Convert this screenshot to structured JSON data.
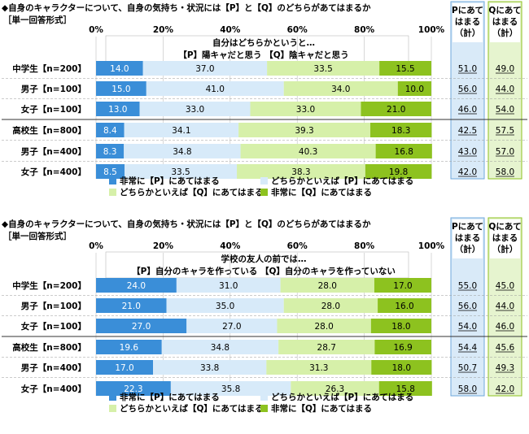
{
  "colors": {
    "p_strong": "#3a8ed8",
    "p_weak": "#d7eaf9",
    "q_weak": "#d6f0a9",
    "q_strong": "#8dc21f",
    "p_col_bg": "#d9eaf8",
    "q_col_bg": "#e6f4cf",
    "p_col_border": "#6fa8dc",
    "q_col_border": "#8dc21f"
  },
  "ticks": [
    "0%",
    "20%",
    "40%",
    "60%",
    "80%",
    "100%"
  ],
  "legend": [
    "非常に【P】にあてはまる",
    "どちらかといえば【P】にあてはまる",
    "どちらかといえば【Q】にあてはまる",
    "非常に【Q】にあてはまる"
  ],
  "p_header": "Pにあてはまる（計）",
  "q_header": "Qにあてはまる（計）",
  "chart_data": [
    {
      "type": "bar",
      "stacked": true,
      "orientation": "horizontal",
      "title": "◆自身のキャラクターについて、自身の気持ち・状況には【P】と【Q】のどちらがあてはまるか",
      "subtitle": "［単一回答形式］",
      "question": "自分はどちらかというと…",
      "pq": "【P】陽キャだと思う 【Q】陰キャだと思う",
      "xlim": [
        0,
        100
      ],
      "categories": [
        "中学生【n=200】",
        "男子【n=100】",
        "女子【n=100】",
        "高校生【n=800】",
        "男子【n=400】",
        "女子【n=400】"
      ],
      "series": [
        {
          "name": "非常に【P】にあてはまる",
          "values": [
            14.0,
            15.0,
            13.0,
            8.4,
            8.3,
            8.5
          ]
        },
        {
          "name": "どちらかといえば【P】にあてはまる",
          "values": [
            37.0,
            41.0,
            33.0,
            34.1,
            34.8,
            33.5
          ]
        },
        {
          "name": "どちらかといえば【Q】にあてはまる",
          "values": [
            33.5,
            34.0,
            33.0,
            39.3,
            40.3,
            38.3
          ]
        },
        {
          "name": "非常に【Q】にあてはまる",
          "values": [
            15.5,
            10.0,
            21.0,
            18.3,
            16.8,
            19.8
          ]
        }
      ],
      "p_total": [
        "51.0",
        "56.0",
        "46.0",
        "42.5",
        "43.0",
        "42.0"
      ],
      "q_total": [
        "49.0",
        "44.0",
        "54.0",
        "57.5",
        "57.0",
        "58.0"
      ]
    },
    {
      "type": "bar",
      "stacked": true,
      "orientation": "horizontal",
      "title": "◆自身のキャラクターについて、自身の気持ち・状況には【P】と【Q】のどちらがあてはまるか",
      "subtitle": "［単一回答形式］",
      "question": "学校の友人の前では…",
      "pq": "【P】自分のキャラを作っている 【Q】自分のキャラを作っていない",
      "xlim": [
        0,
        100
      ],
      "categories": [
        "中学生【n=200】",
        "男子【n=100】",
        "女子【n=100】",
        "高校生【n=800】",
        "男子【n=400】",
        "女子【n=400】"
      ],
      "series": [
        {
          "name": "非常に【P】にあてはまる",
          "values": [
            24.0,
            21.0,
            27.0,
            19.6,
            17.0,
            22.3
          ]
        },
        {
          "name": "どちらかといえば【P】にあてはまる",
          "values": [
            31.0,
            35.0,
            27.0,
            34.8,
            33.8,
            35.8
          ]
        },
        {
          "name": "どちらかといえば【Q】にあてはまる",
          "values": [
            28.0,
            28.0,
            28.0,
            28.7,
            31.3,
            26.3
          ]
        },
        {
          "name": "非常に【Q】にあてはまる",
          "values": [
            17.0,
            16.0,
            18.0,
            16.9,
            18.0,
            15.8
          ]
        }
      ],
      "p_total": [
        "55.0",
        "56.0",
        "54.0",
        "54.4",
        "50.7",
        "58.0"
      ],
      "q_total": [
        "45.0",
        "44.0",
        "46.0",
        "45.6",
        "49.3",
        "42.0"
      ]
    }
  ]
}
